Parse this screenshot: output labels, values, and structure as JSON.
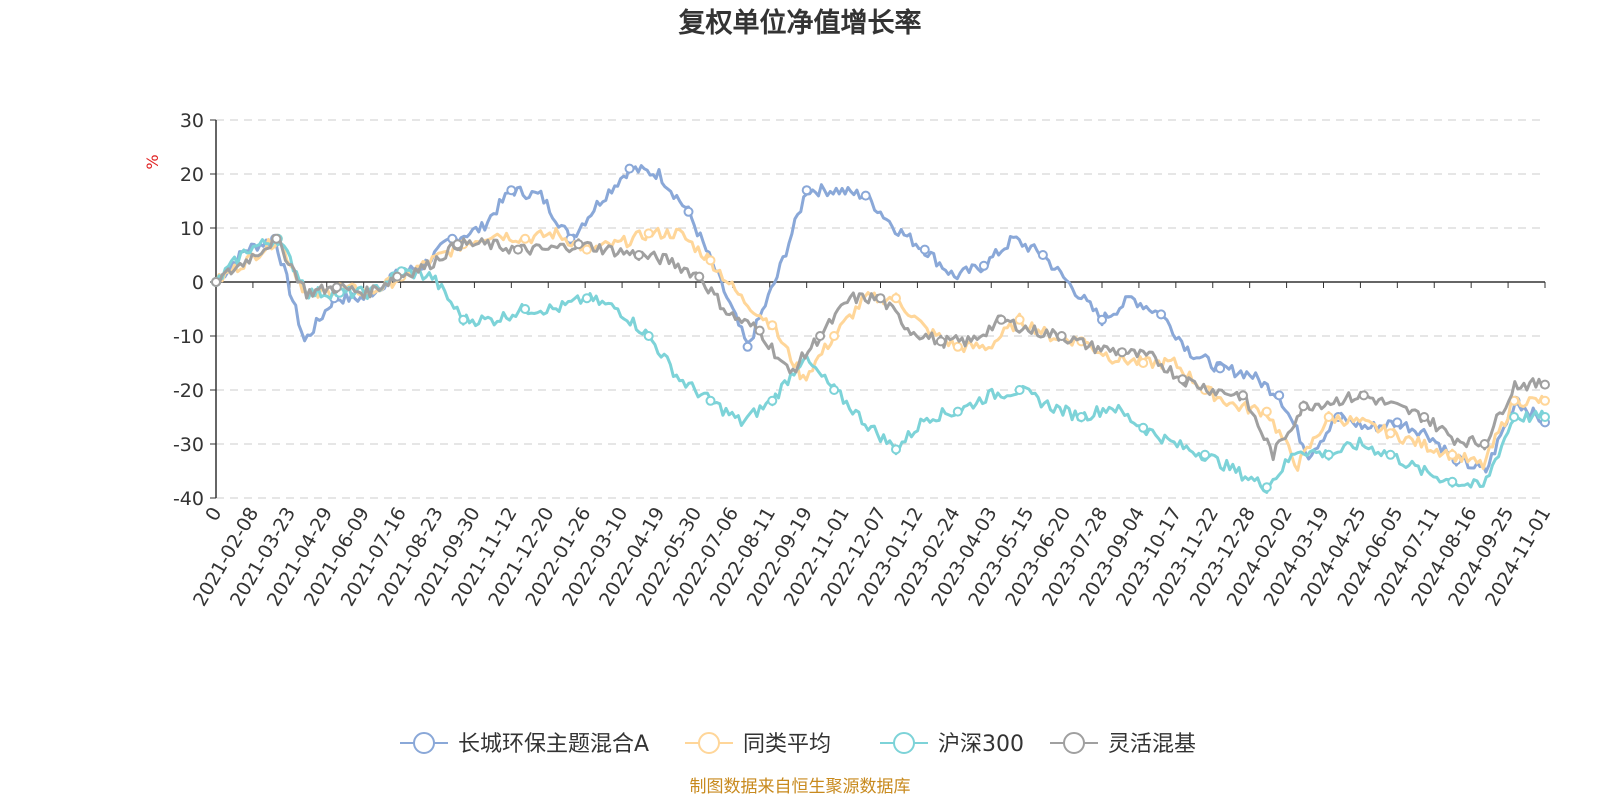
{
  "chart_data": {
    "type": "line",
    "title": "复权单位净值增长率",
    "ylabel": "%",
    "ylim": [
      -40,
      30
    ],
    "y_ticks": [
      30,
      20,
      10,
      0,
      -10,
      -20,
      -30,
      -40
    ],
    "x_tick_labels": [
      "0",
      "2021-02-08",
      "2021-03-23",
      "2021-04-29",
      "2021-06-09",
      "2021-07-16",
      "2021-08-23",
      "2021-09-30",
      "2021-11-12",
      "2021-12-20",
      "2022-01-26",
      "2022-03-10",
      "2022-04-19",
      "2022-05-30",
      "2022-07-06",
      "2022-08-11",
      "2022-09-19",
      "2022-11-01",
      "2022-12-07",
      "2023-01-12",
      "2023-02-24",
      "2023-04-03",
      "2023-05-15",
      "2023-06-20",
      "2023-07-28",
      "2023-09-04",
      "2023-10-17",
      "2023-11-22",
      "2023-12-28",
      "2024-02-02",
      "2024-03-19",
      "2024-04-25",
      "2024-06-05",
      "2024-07-11",
      "2024-08-16",
      "2024-09-25",
      "2024-11-01"
    ],
    "grid": true,
    "legend_position": "bottom-center",
    "series": [
      {
        "name": "长城环保主题混合A",
        "color": "#8aa8d8",
        "values": [
          0,
          6,
          8,
          -11,
          -3,
          -3,
          1,
          3,
          8,
          10,
          17,
          16,
          8,
          15,
          21,
          20,
          13,
          1,
          -12,
          1,
          17,
          17,
          16,
          10,
          6,
          1,
          3,
          8,
          5,
          -1,
          -7,
          -3,
          -6,
          -13,
          -16,
          -17,
          -21,
          -32,
          -25,
          -27,
          -26,
          -28,
          -33,
          -35,
          -22,
          -26
        ]
      },
      {
        "name": "同类平均",
        "color": "#ffd699",
        "values": [
          0,
          4,
          8,
          -3,
          -1,
          -2,
          1,
          4,
          7,
          9,
          8,
          9,
          6,
          7,
          9,
          9,
          4,
          -3,
          -8,
          -18,
          -10,
          -3,
          -3,
          -9,
          -12,
          -12,
          -7,
          -10,
          -11,
          -14,
          -15,
          -15,
          -20,
          -23,
          -24,
          -34,
          -25,
          -26,
          -28,
          -30,
          -32,
          -34,
          -22,
          -22
        ]
      },
      {
        "name": "沪深300",
        "color": "#7dd3d8",
        "values": [
          0,
          6,
          8,
          -2,
          -2,
          -2,
          2,
          1,
          -7,
          -7,
          -5,
          -5,
          -3,
          -5,
          -10,
          -18,
          -22,
          -26,
          -22,
          -14,
          -20,
          -26,
          -31,
          -25,
          -24,
          -21,
          -20,
          -23,
          -25,
          -23,
          -27,
          -30,
          -32,
          -35,
          -38,
          -31,
          -32,
          -30,
          -32,
          -35,
          -37,
          -38,
          -25,
          -25
        ]
      },
      {
        "name": "灵活混基",
        "color": "#a0a0a0",
        "values": [
          0,
          4,
          8,
          -2,
          -1,
          -2,
          1,
          3,
          7,
          7,
          6,
          6,
          7,
          6,
          5,
          4,
          1,
          -6,
          -9,
          -17,
          -10,
          -3,
          -3,
          -9,
          -11,
          -11,
          -7,
          -9,
          -10,
          -12,
          -13,
          -14,
          -18,
          -20,
          -21,
          -32,
          -23,
          -22,
          -21,
          -23,
          -25,
          -29,
          -30,
          -19,
          -19
        ]
      }
    ]
  },
  "legend": {
    "items": [
      "长城环保主题混合A",
      "同类平均",
      "沪深300",
      "灵活混基"
    ]
  },
  "footer": {
    "source": "制图数据来自恒生聚源数据库"
  }
}
